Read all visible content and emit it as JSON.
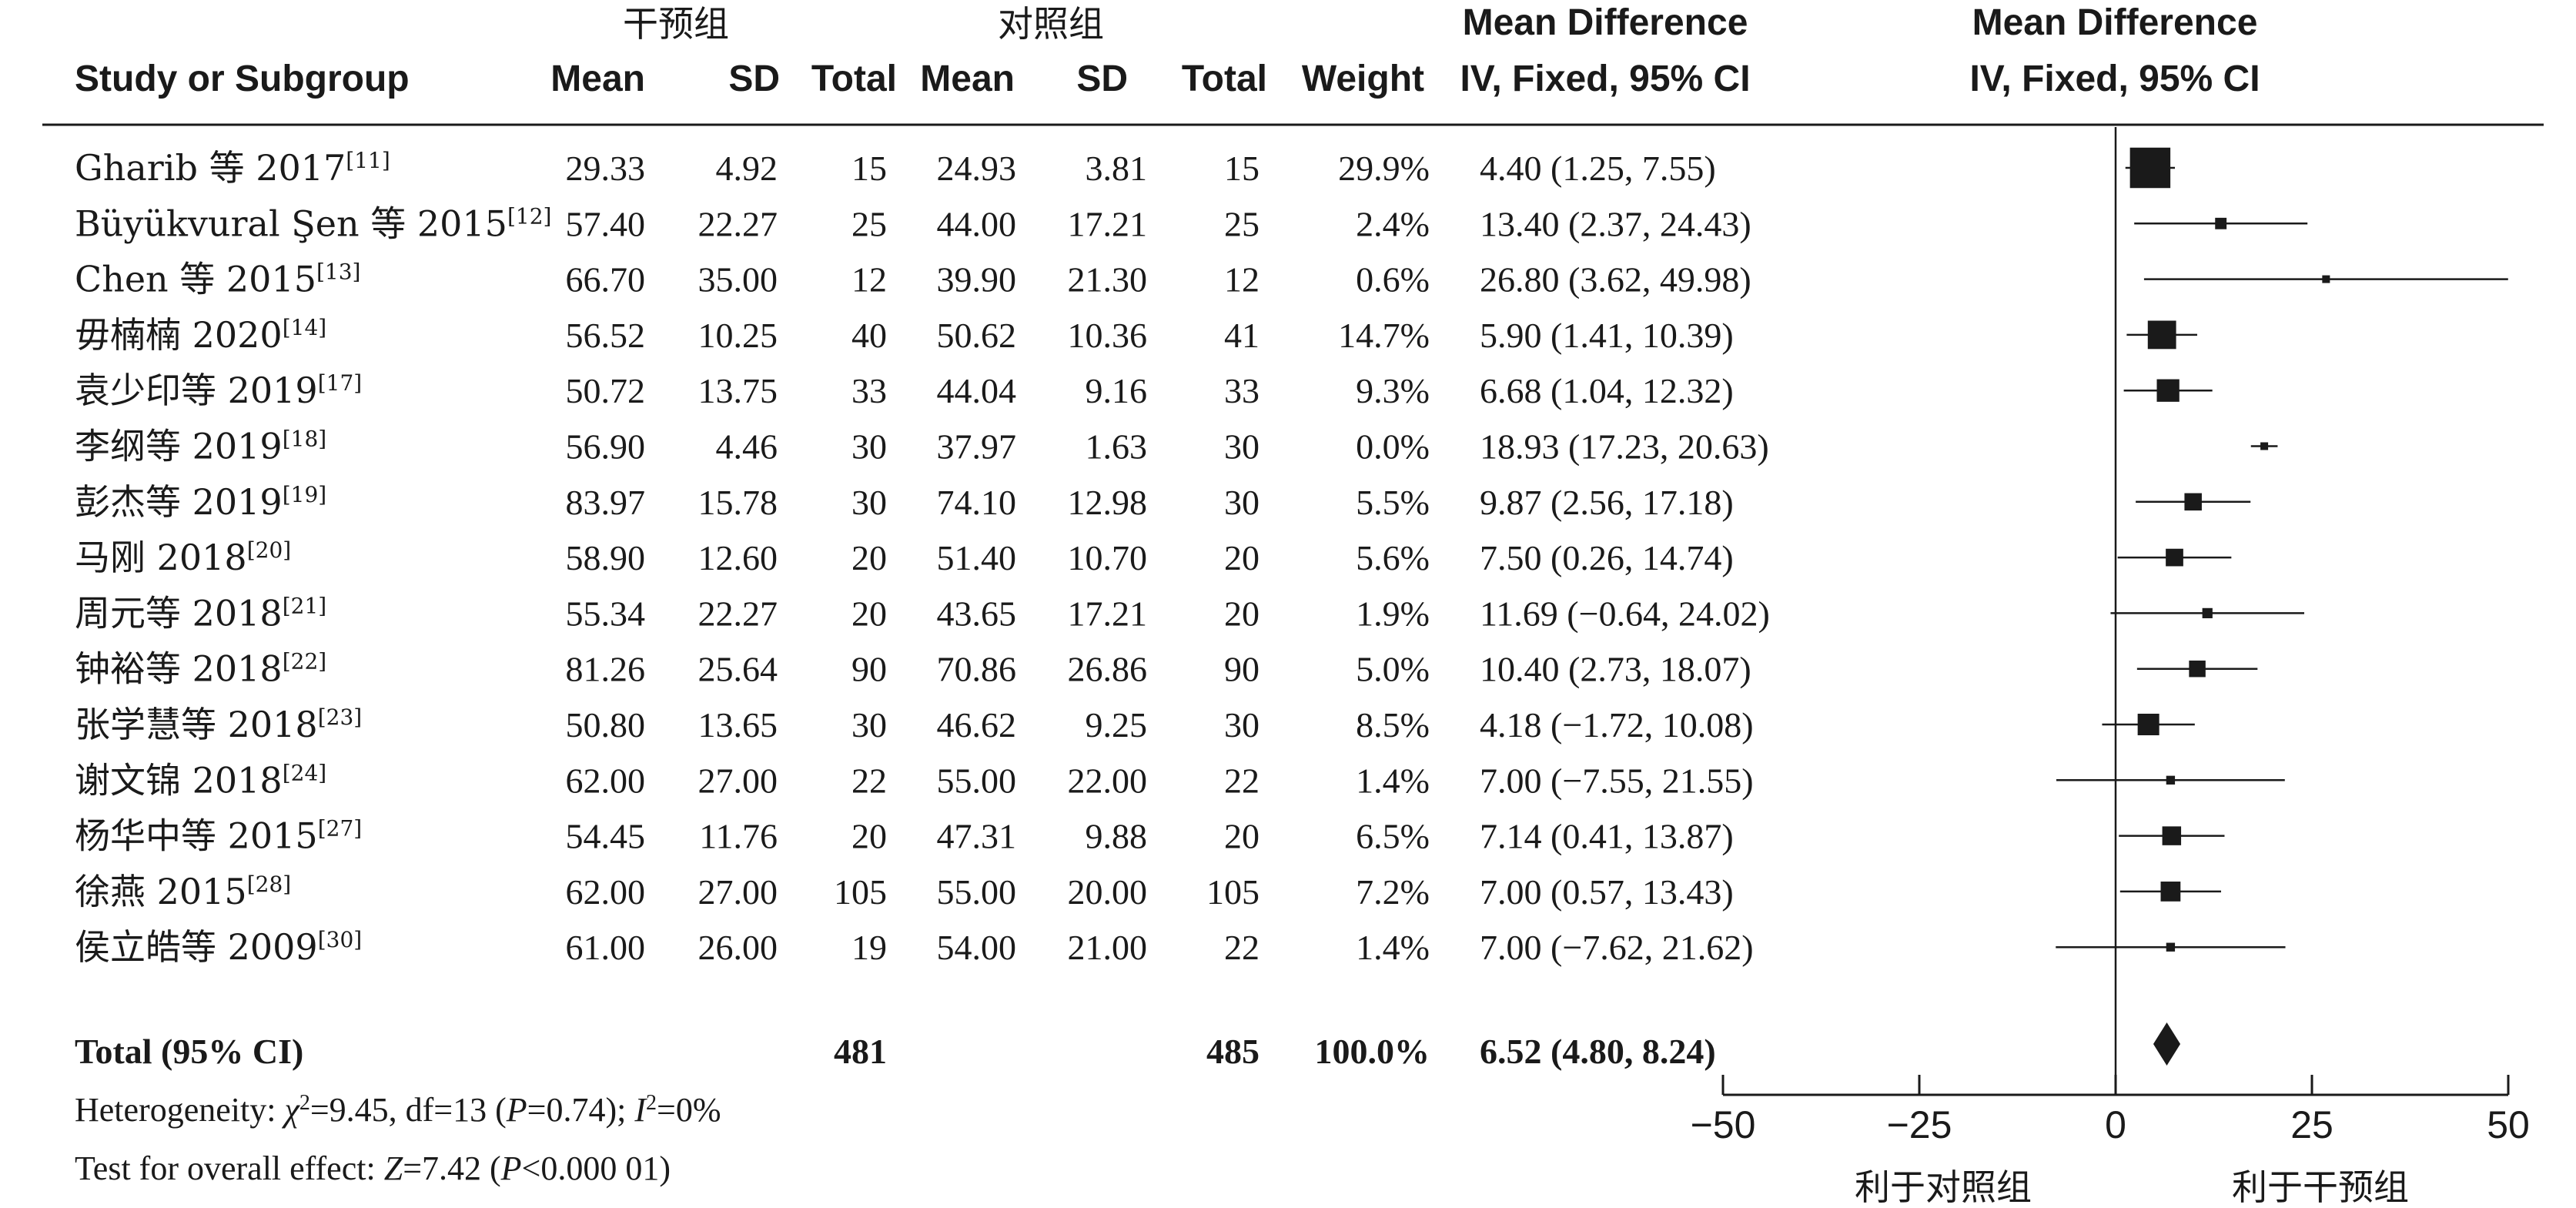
{
  "headers": {
    "intervention_group": "干预组",
    "control_group": "对照组",
    "study": "Study or Subgroup",
    "mean": "Mean",
    "sd": "SD",
    "total": "Total",
    "weight": "Weight",
    "md_title": "Mean Difference",
    "md_method": "IV, Fixed, 95% CI",
    "plot_title": "Mean Difference",
    "plot_method": "IV, Fixed, 95% CI"
  },
  "chart_data": {
    "type": "forest",
    "xlim": [
      -50,
      50
    ],
    "xticks": [
      "−50",
      "−25",
      "0",
      "25",
      "50"
    ],
    "tick_values": [
      -50,
      -25,
      0,
      25,
      50
    ],
    "left_favor": "利于对照组",
    "right_favor": "利于干预组",
    "studies": [
      {
        "name": "Gharib 等 2017",
        "ref": "[11]",
        "m1": "29.33",
        "sd1": "4.92",
        "n1": "15",
        "m2": "24.93",
        "sd2": "3.81",
        "n2": "15",
        "weight": "29.9%",
        "ci_text": "4.40 (1.25, 7.55)",
        "md": 4.4,
        "lo": 1.25,
        "hi": 7.55,
        "w": 29.9
      },
      {
        "name": "Büyükvural Şen 等 2015",
        "ref": "[12]",
        "m1": "57.40",
        "sd1": "22.27",
        "n1": "25",
        "m2": "44.00",
        "sd2": "17.21",
        "n2": "25",
        "weight": "2.4%",
        "ci_text": "13.40 (2.37, 24.43)",
        "md": 13.4,
        "lo": 2.37,
        "hi": 24.43,
        "w": 2.4
      },
      {
        "name": "Chen 等 2015",
        "ref": "[13]",
        "m1": "66.70",
        "sd1": "35.00",
        "n1": "12",
        "m2": "39.90",
        "sd2": "21.30",
        "n2": "12",
        "weight": "0.6%",
        "ci_text": "26.80 (3.62, 49.98)",
        "md": 26.8,
        "lo": 3.62,
        "hi": 49.98,
        "w": 0.6
      },
      {
        "name": "毋楠楠 2020",
        "ref": "[14]",
        "m1": "56.52",
        "sd1": "10.25",
        "n1": "40",
        "m2": "50.62",
        "sd2": "10.36",
        "n2": "41",
        "weight": "14.7%",
        "ci_text": "5.90 (1.41, 10.39)",
        "md": 5.9,
        "lo": 1.41,
        "hi": 10.39,
        "w": 14.7
      },
      {
        "name": "袁少印等 2019",
        "ref": "[17]",
        "m1": "50.72",
        "sd1": "13.75",
        "n1": "33",
        "m2": "44.04",
        "sd2": "9.16",
        "n2": "33",
        "weight": "9.3%",
        "ci_text": "6.68 (1.04, 12.32)",
        "md": 6.68,
        "lo": 1.04,
        "hi": 12.32,
        "w": 9.3
      },
      {
        "name": "李纲等 2019",
        "ref": "[18]",
        "m1": "56.90",
        "sd1": "4.46",
        "n1": "30",
        "m2": "37.97",
        "sd2": "1.63",
        "n2": "30",
        "weight": "0.0%",
        "ci_text": "18.93 (17.23, 20.63)",
        "md": 18.93,
        "lo": 17.23,
        "hi": 20.63,
        "w": 0.0
      },
      {
        "name": "彭杰等 2019",
        "ref": "[19]",
        "m1": "83.97",
        "sd1": "15.78",
        "n1": "30",
        "m2": "74.10",
        "sd2": "12.98",
        "n2": "30",
        "weight": "5.5%",
        "ci_text": "9.87 (2.56, 17.18)",
        "md": 9.87,
        "lo": 2.56,
        "hi": 17.18,
        "w": 5.5
      },
      {
        "name": "马刚 2018",
        "ref": "[20]",
        "m1": "58.90",
        "sd1": "12.60",
        "n1": "20",
        "m2": "51.40",
        "sd2": "10.70",
        "n2": "20",
        "weight": "5.6%",
        "ci_text": "7.50 (0.26, 14.74)",
        "md": 7.5,
        "lo": 0.26,
        "hi": 14.74,
        "w": 5.6
      },
      {
        "name": "周元等 2018",
        "ref": "[21]",
        "m1": "55.34",
        "sd1": "22.27",
        "n1": "20",
        "m2": "43.65",
        "sd2": "17.21",
        "n2": "20",
        "weight": "1.9%",
        "ci_text": "11.69 (−0.64, 24.02)",
        "md": 11.69,
        "lo": -0.64,
        "hi": 24.02,
        "w": 1.9
      },
      {
        "name": "钟裕等 2018",
        "ref": "[22]",
        "m1": "81.26",
        "sd1": "25.64",
        "n1": "90",
        "m2": "70.86",
        "sd2": "26.86",
        "n2": "90",
        "weight": "5.0%",
        "ci_text": "10.40 (2.73, 18.07)",
        "md": 10.4,
        "lo": 2.73,
        "hi": 18.07,
        "w": 5.0
      },
      {
        "name": "张学慧等 2018",
        "ref": "[23]",
        "m1": "50.80",
        "sd1": "13.65",
        "n1": "30",
        "m2": "46.62",
        "sd2": "9.25",
        "n2": "30",
        "weight": "8.5%",
        "ci_text": "4.18 (−1.72, 10.08)",
        "md": 4.18,
        "lo": -1.72,
        "hi": 10.08,
        "w": 8.5
      },
      {
        "name": "谢文锦 2018",
        "ref": "[24]",
        "m1": "62.00",
        "sd1": "27.00",
        "n1": "22",
        "m2": "55.00",
        "sd2": "22.00",
        "n2": "22",
        "weight": "1.4%",
        "ci_text": "7.00 (−7.55, 21.55)",
        "md": 7.0,
        "lo": -7.55,
        "hi": 21.55,
        "w": 1.4
      },
      {
        "name": "杨华中等 2015",
        "ref": "[27]",
        "m1": "54.45",
        "sd1": "11.76",
        "n1": "20",
        "m2": "47.31",
        "sd2": "9.88",
        "n2": "20",
        "weight": "6.5%",
        "ci_text": "7.14 (0.41, 13.87)",
        "md": 7.14,
        "lo": 0.41,
        "hi": 13.87,
        "w": 6.5
      },
      {
        "name": "徐燕 2015",
        "ref": "[28]",
        "m1": "62.00",
        "sd1": "27.00",
        "n1": "105",
        "m2": "55.00",
        "sd2": "20.00",
        "n2": "105",
        "weight": "7.2%",
        "ci_text": "7.00 (0.57, 13.43)",
        "md": 7.0,
        "lo": 0.57,
        "hi": 13.43,
        "w": 7.2
      },
      {
        "name": "侯立皓等 2009",
        "ref": "[30]",
        "m1": "61.00",
        "sd1": "26.00",
        "n1": "19",
        "m2": "54.00",
        "sd2": "21.00",
        "n2": "22",
        "weight": "1.4%",
        "ci_text": "7.00 (−7.62, 21.62)",
        "md": 7.0,
        "lo": -7.62,
        "hi": 21.62,
        "w": 1.4
      }
    ],
    "total": {
      "label": "Total (95% CI)",
      "n1": "481",
      "n2": "485",
      "weight": "100.0%",
      "ci_text": "6.52 (4.80, 8.24)",
      "md": 6.52,
      "lo": 4.8,
      "hi": 8.24
    },
    "heterogeneity": {
      "prefix": "Heterogeneity: ",
      "chi_sym": "χ",
      "sq": "2",
      "chi_val": "=9.45, df=13 (",
      "p_sym": "P",
      "p_val": "=0.74); ",
      "i_sym": "I",
      "i_val": "=0%"
    },
    "overall": {
      "prefix": "Test for overall effect: ",
      "z_sym": "Z",
      "z_val": "=7.42 (",
      "p_sym": "P",
      "p_val": "<0.000 01)"
    }
  }
}
